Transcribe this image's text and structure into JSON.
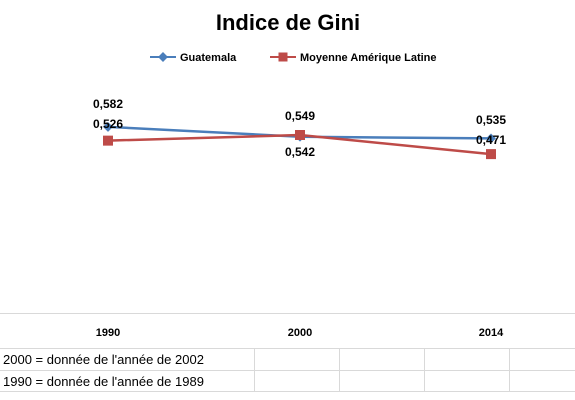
{
  "chart_data": {
    "type": "line",
    "title": "Indice de Gini",
    "categories": [
      "1990",
      "2000",
      "2014"
    ],
    "series": [
      {
        "name": "Guatemala",
        "values": [
          0.582,
          0.542,
          0.535
        ],
        "labels": [
          "0,582",
          "0,542",
          "0,535"
        ],
        "color": "#4a7ebb",
        "marker": "diamond"
      },
      {
        "name": "Moyenne Amérique Latine",
        "values": [
          0.526,
          0.549,
          0.471
        ],
        "labels": [
          "0,526",
          "0,549",
          "0,471"
        ],
        "color": "#be4b48",
        "marker": "square"
      }
    ],
    "legend_position": "top-center",
    "grid": false
  },
  "notes": [
    "2000 = donnée de l'année de 2002",
    "1990 = donnée de l'année de 1989"
  ]
}
